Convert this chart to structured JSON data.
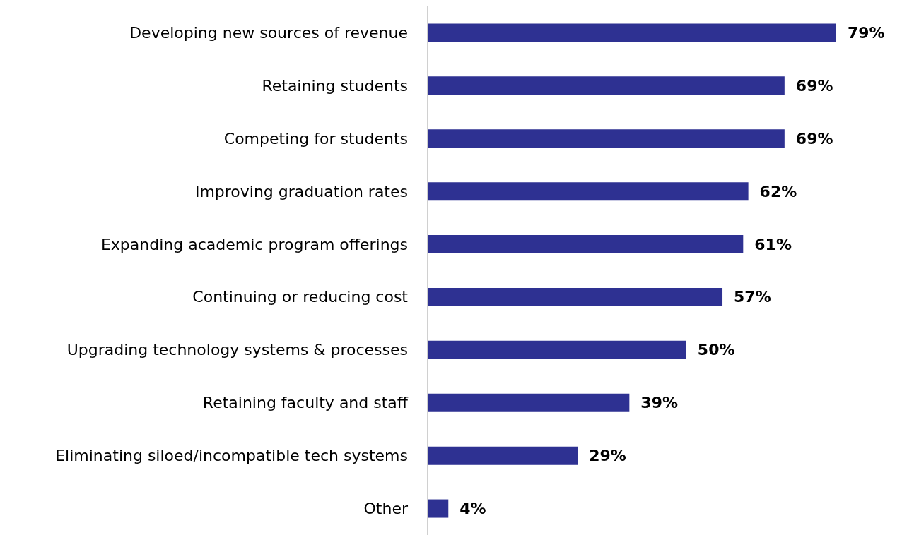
{
  "chart_data": {
    "type": "bar",
    "orientation": "horizontal",
    "categories": [
      "Developing new sources of revenue",
      "Retaining students",
      "Competing for students",
      "Improving graduation rates",
      "Expanding academic program offerings",
      "Continuing or reducing cost",
      "Upgrading technology systems & processes",
      "Retaining faculty and staff",
      "Eliminating siloed/incompatible tech systems",
      "Other"
    ],
    "values": [
      79,
      69,
      69,
      62,
      61,
      57,
      50,
      39,
      29,
      4
    ],
    "value_labels": [
      "79%",
      "69%",
      "69%",
      "62%",
      "61%",
      "57%",
      "50%",
      "39%",
      "29%",
      "4%"
    ],
    "color": "#2e3192"
  }
}
